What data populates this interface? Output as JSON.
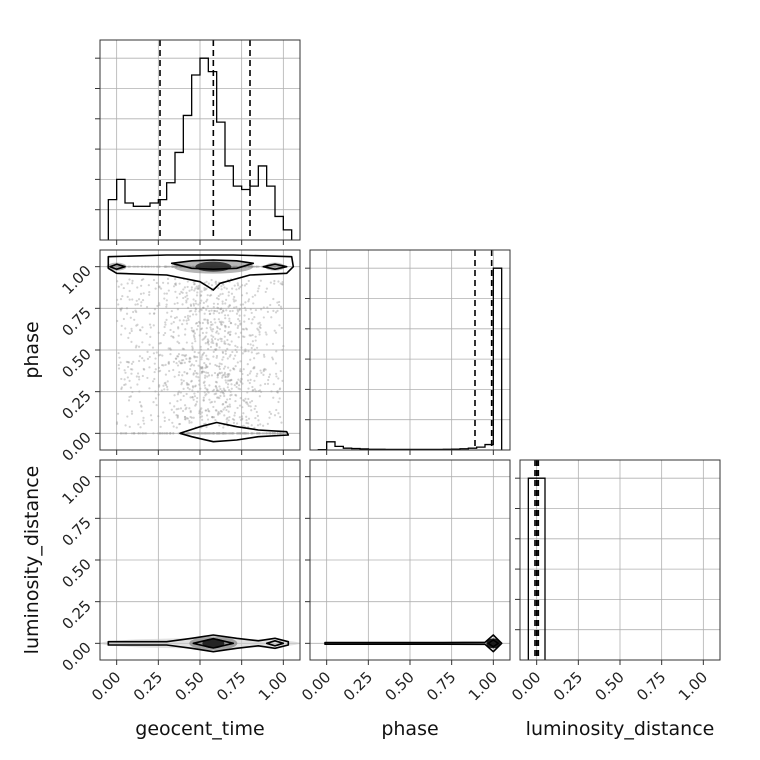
{
  "chart_data": {
    "type": "corner",
    "parameters": [
      "geocent_time",
      "phase",
      "luminosity_distance"
    ],
    "axis_range": [
      -0.1,
      1.1
    ],
    "ticks": [
      0.0,
      0.25,
      0.5,
      0.75,
      1.0
    ],
    "tick_labels": [
      "0.00",
      "0.25",
      "0.50",
      "0.75",
      "1.00"
    ],
    "grid": true,
    "colors": {
      "line": "#000000",
      "grid": "#b0b0b0",
      "scatter": "#9e9e9e",
      "density": "#7a7a7a"
    },
    "marginals": [
      {
        "parameter": "geocent_time",
        "bin_edges": [
          -0.05,
          0.0,
          0.05,
          0.1,
          0.15,
          0.2,
          0.25,
          0.3,
          0.35,
          0.4,
          0.45,
          0.5,
          0.55,
          0.6,
          0.65,
          0.7,
          0.75,
          0.8,
          0.85,
          0.9,
          0.95,
          1.0,
          1.05
        ],
        "counts": [
          12,
          18,
          11,
          10,
          10,
          11,
          12,
          17,
          26,
          37,
          49,
          54,
          50,
          35,
          22,
          16,
          15,
          16,
          22,
          16,
          7,
          3
        ],
        "quantiles": [
          0.26,
          0.58,
          0.8
        ]
      },
      {
        "parameter": "phase",
        "bin_edges": [
          -0.05,
          0.0,
          0.05,
          0.1,
          0.15,
          0.2,
          0.25,
          0.3,
          0.35,
          0.4,
          0.45,
          0.5,
          0.55,
          0.6,
          0.65,
          0.7,
          0.75,
          0.8,
          0.85,
          0.9,
          0.95,
          1.0,
          1.05
        ],
        "counts": [
          0.2,
          4.5,
          2.0,
          1.0,
          0.8,
          0.6,
          0.4,
          0.4,
          0.3,
          0.3,
          0.3,
          0.3,
          0.3,
          0.3,
          0.3,
          0.4,
          0.5,
          0.7,
          1.0,
          1.6,
          3.0,
          100
        ],
        "quantiles": [
          0.89,
          0.99
        ]
      },
      {
        "parameter": "luminosity_distance",
        "bin_edges": [
          -0.05,
          0.0,
          0.05
        ],
        "counts": [
          100,
          100
        ],
        "quantiles": [
          -0.01,
          0.0,
          0.01
        ]
      }
    ],
    "panels_2d": [
      {
        "x": "geocent_time",
        "y": "phase",
        "density_modes": [
          [
            0.58,
            1.0
          ],
          [
            0.0,
            1.0
          ],
          [
            0.95,
            1.0
          ],
          [
            0.58,
            0.0
          ],
          [
            0.95,
            0.0
          ]
        ]
      },
      {
        "x": "geocent_time",
        "y": "luminosity_distance",
        "density_modes": [
          [
            0.58,
            0.0
          ],
          [
            0.0,
            0.0
          ],
          [
            0.95,
            0.0
          ]
        ]
      },
      {
        "x": "phase",
        "y": "luminosity_distance",
        "density_modes": [
          [
            1.0,
            0.0
          ]
        ]
      }
    ]
  }
}
